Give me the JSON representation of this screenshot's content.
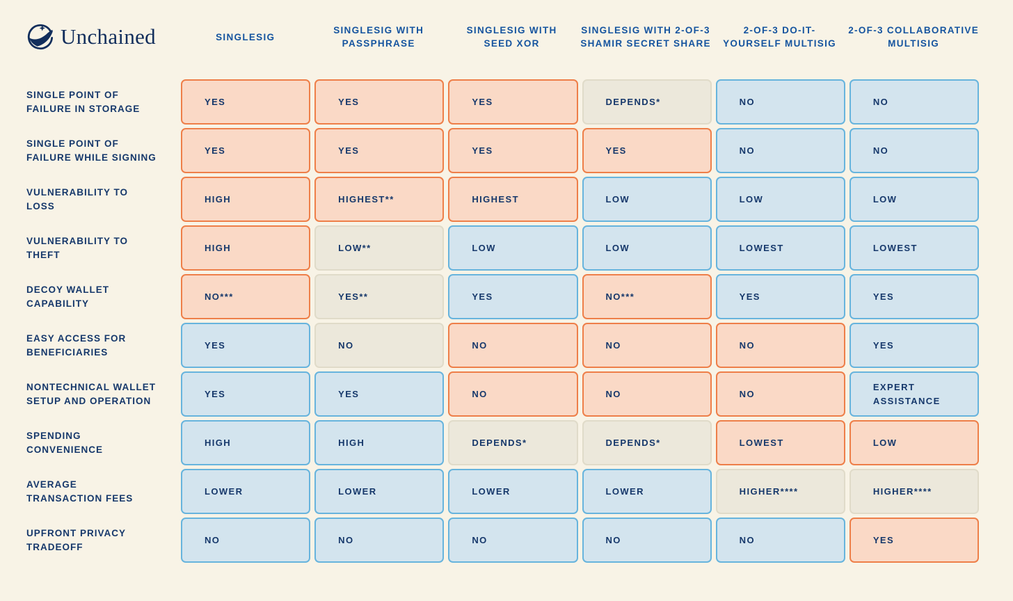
{
  "colors": {
    "background": "#f8f3e6",
    "navy": "#16386b",
    "logo_navy": "#122e5c",
    "header_blue": "#15549f",
    "orange_fill": "#fad9c6",
    "orange_border": "#ee7f49",
    "blue_fill": "#d3e4ee",
    "blue_border": "#67b4dd",
    "neutral_fill": "#ece8db",
    "neutral_border": "#e0dbc9"
  },
  "logo": {
    "brand": "Unchained"
  },
  "legend_semantics": {
    "orange": "drawback",
    "blue": "benefit",
    "neutral": "depends"
  },
  "table": {
    "columns": [
      {
        "id": "singlesig",
        "lines": [
          "SINGLESIG"
        ]
      },
      {
        "id": "singlesig-passphrase",
        "lines": [
          "SINGLESIG WITH",
          "PASSPHRASE"
        ]
      },
      {
        "id": "singlesig-seed-xor",
        "lines": [
          "SINGLESIG WITH",
          "SEED XOR"
        ]
      },
      {
        "id": "singlesig-shamir",
        "lines": [
          "SINGLESIG WITH  2-OF-3",
          "SHAMIR SECRET SHARE"
        ]
      },
      {
        "id": "diy-multisig",
        "lines": [
          "2-OF-3 DO-IT-",
          "YOURSELF MULTISIG"
        ]
      },
      {
        "id": "collaborative-multisig",
        "lines": [
          "2-OF-3 COLLABORATIVE",
          "MULTISIG"
        ]
      }
    ],
    "rows": [
      {
        "id": "single-point-of-failure-in-storage",
        "label_lines": [
          "SINGLE POINT OF",
          "FAILURE IN STORAGE"
        ],
        "cells": [
          {
            "text": "YES",
            "variant": "orange"
          },
          {
            "text": "YES",
            "variant": "orange"
          },
          {
            "text": "YES",
            "variant": "orange"
          },
          {
            "text": "DEPENDS*",
            "variant": "neutral"
          },
          {
            "text": "NO",
            "variant": "blue"
          },
          {
            "text": "NO",
            "variant": "blue"
          }
        ]
      },
      {
        "id": "single-point-of-failure-while-signing",
        "label_lines": [
          "SINGLE POINT OF",
          "FAILURE WHILE SIGNING"
        ],
        "cells": [
          {
            "text": "YES",
            "variant": "orange"
          },
          {
            "text": "YES",
            "variant": "orange"
          },
          {
            "text": "YES",
            "variant": "orange"
          },
          {
            "text": "YES",
            "variant": "orange"
          },
          {
            "text": "NO",
            "variant": "blue"
          },
          {
            "text": "NO",
            "variant": "blue"
          }
        ]
      },
      {
        "id": "vulnerability-to-loss",
        "label_lines": [
          "VULNERABILITY TO",
          "LOSS"
        ],
        "cells": [
          {
            "text": "HIGH",
            "variant": "orange"
          },
          {
            "text": "HIGHEST**",
            "variant": "orange"
          },
          {
            "text": "HIGHEST",
            "variant": "orange"
          },
          {
            "text": "LOW",
            "variant": "blue"
          },
          {
            "text": "LOW",
            "variant": "blue"
          },
          {
            "text": "LOW",
            "variant": "blue"
          }
        ]
      },
      {
        "id": "vulnerability-to-theft",
        "label_lines": [
          "VULNERABILITY TO",
          "THEFT"
        ],
        "cells": [
          {
            "text": "HIGH",
            "variant": "orange"
          },
          {
            "text": "LOW**",
            "variant": "neutral"
          },
          {
            "text": "LOW",
            "variant": "blue"
          },
          {
            "text": "LOW",
            "variant": "blue"
          },
          {
            "text": "LOWEST",
            "variant": "blue"
          },
          {
            "text": "LOWEST",
            "variant": "blue"
          }
        ]
      },
      {
        "id": "decoy-wallet-capability",
        "label_lines": [
          "DECOY WALLET",
          "CAPABILITY"
        ],
        "cells": [
          {
            "text": "NO***",
            "variant": "orange"
          },
          {
            "text": "YES**",
            "variant": "neutral"
          },
          {
            "text": "YES",
            "variant": "blue"
          },
          {
            "text": "NO***",
            "variant": "orange"
          },
          {
            "text": "YES",
            "variant": "blue"
          },
          {
            "text": "YES",
            "variant": "blue"
          }
        ]
      },
      {
        "id": "easy-access-for-beneficiaries",
        "label_lines": [
          "EASY ACCESS FOR",
          "BENEFICIARIES"
        ],
        "cells": [
          {
            "text": "YES",
            "variant": "blue"
          },
          {
            "text": "NO",
            "variant": "neutral"
          },
          {
            "text": "NO",
            "variant": "orange"
          },
          {
            "text": "NO",
            "variant": "orange"
          },
          {
            "text": "NO",
            "variant": "orange"
          },
          {
            "text": "YES",
            "variant": "blue"
          }
        ]
      },
      {
        "id": "nontechnical-wallet-setup-and-operation",
        "label_lines": [
          "NONTECHNICAL WALLET",
          "SETUP AND OPERATION"
        ],
        "cells": [
          {
            "text": "YES",
            "variant": "blue"
          },
          {
            "text": "YES",
            "variant": "blue"
          },
          {
            "text": "NO",
            "variant": "orange"
          },
          {
            "text": "NO",
            "variant": "orange"
          },
          {
            "text": "NO",
            "variant": "orange"
          },
          {
            "text": "EXPERT ASSISTANCE",
            "variant": "blue"
          }
        ]
      },
      {
        "id": "spending-convenience",
        "label_lines": [
          "SPENDING",
          "CONVENIENCE"
        ],
        "cells": [
          {
            "text": "HIGH",
            "variant": "blue"
          },
          {
            "text": "HIGH",
            "variant": "blue"
          },
          {
            "text": "DEPENDS*",
            "variant": "neutral"
          },
          {
            "text": "DEPENDS*",
            "variant": "neutral"
          },
          {
            "text": "LOWEST",
            "variant": "orange"
          },
          {
            "text": "LOW",
            "variant": "orange"
          }
        ]
      },
      {
        "id": "average-transaction-fees",
        "label_lines": [
          "AVERAGE",
          "TRANSACTION FEES"
        ],
        "cells": [
          {
            "text": "LOWER",
            "variant": "blue"
          },
          {
            "text": "LOWER",
            "variant": "blue"
          },
          {
            "text": "LOWER",
            "variant": "blue"
          },
          {
            "text": "LOWER",
            "variant": "blue"
          },
          {
            "text": "HIGHER****",
            "variant": "neutral"
          },
          {
            "text": "HIGHER****",
            "variant": "neutral"
          }
        ]
      },
      {
        "id": "upfront-privacy-tradeoff",
        "label_lines": [
          "UPFRONT PRIVACY",
          "TRADEOFF"
        ],
        "cells": [
          {
            "text": "NO",
            "variant": "blue"
          },
          {
            "text": "NO",
            "variant": "blue"
          },
          {
            "text": "NO",
            "variant": "blue"
          },
          {
            "text": "NO",
            "variant": "blue"
          },
          {
            "text": "NO",
            "variant": "blue"
          },
          {
            "text": "YES",
            "variant": "orange"
          }
        ]
      }
    ]
  }
}
